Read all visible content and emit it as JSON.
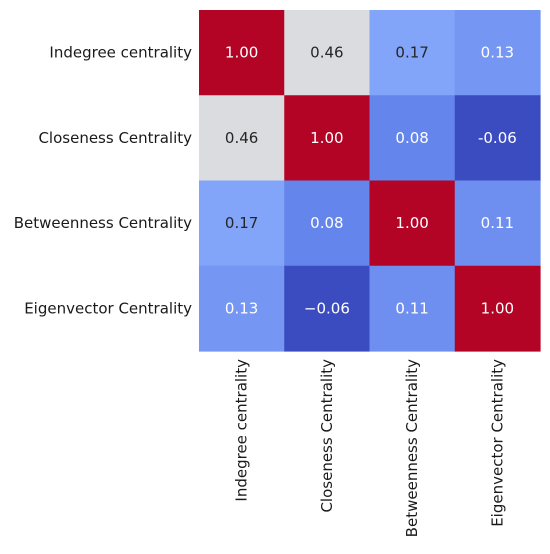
{
  "chart_data": {
    "type": "heatmap",
    "x_categories": [
      "Indegree centrality",
      "Closeness Centrality",
      "Betweenness Centrality",
      "Eigenvector Centrality"
    ],
    "y_categories": [
      "Indegree centrality",
      "Closeness Centrality",
      "Betweenness Centrality",
      "Eigenvector Centrality"
    ],
    "values": [
      [
        1.0,
        0.46,
        0.17,
        0.13
      ],
      [
        0.46,
        1.0,
        0.08,
        -0.06
      ],
      [
        0.17,
        0.08,
        1.0,
        0.11
      ],
      [
        0.13,
        -0.06,
        0.11,
        1.0
      ]
    ],
    "cell_labels": [
      [
        "1.00",
        "0.46",
        "0.17",
        "0.13"
      ],
      [
        "0.46",
        "1.00",
        "0.08",
        "-0.06"
      ],
      [
        "0.17",
        "0.08",
        "1.00",
        "0.11"
      ],
      [
        "0.13",
        "−0.06",
        "0.11",
        "1.00"
      ]
    ],
    "colormap": "coolwarm",
    "value_range": [
      -0.06,
      1.0
    ],
    "colorbar": false,
    "grid": false
  }
}
